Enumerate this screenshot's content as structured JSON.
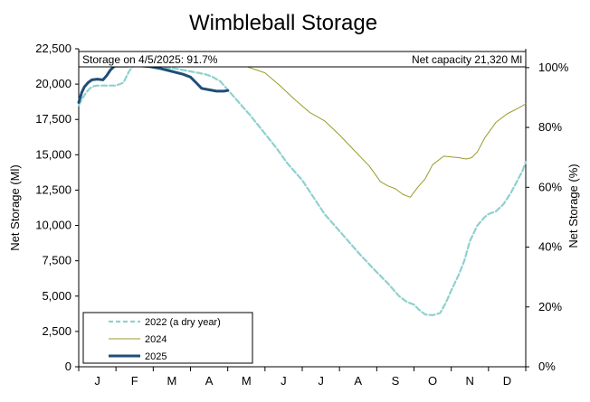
{
  "chart_data": {
    "type": "line",
    "title": "Wimbleball Storage",
    "ylabel": "Net Storage (Ml)",
    "y2label": "Net Storage (%)",
    "ylim": [
      0,
      22500
    ],
    "yticks": [
      "0",
      "2,500",
      "5,000",
      "7,500",
      "10,000",
      "12,500",
      "15,000",
      "17,500",
      "20,000",
      "22,500"
    ],
    "y2lim": [
      0,
      106.3
    ],
    "y2ticks": [
      "0%",
      "20%",
      "40%",
      "60%",
      "80%",
      "100%"
    ],
    "months": [
      "J",
      "F",
      "M",
      "A",
      "M",
      "J",
      "J",
      "A",
      "S",
      "O",
      "N",
      "D"
    ],
    "xlim": [
      0,
      12
    ],
    "capacity": 21320,
    "capacity_color": "#b5b23a",
    "annotation_left": "Storage on 4/5/2025: 91.7%",
    "annotation_right": "Net capacity 21,320 Ml",
    "series": [
      {
        "name": "2022 (a dry year)",
        "color": "#8fd1ce",
        "style": "dashed",
        "x": [
          0,
          0.1,
          0.2,
          0.3,
          0.4,
          0.5,
          0.7,
          1.0,
          1.2,
          1.35,
          1.45,
          1.6,
          1.8,
          2.0,
          2.3,
          2.6,
          2.8,
          3.0,
          3.2,
          3.4,
          3.6,
          3.8,
          4.0,
          4.3,
          4.6,
          5.0,
          5.3,
          5.6,
          6.0,
          6.3,
          6.6,
          7.0,
          7.3,
          7.6,
          8.0,
          8.3,
          8.6,
          8.8,
          9.0,
          9.15,
          9.3,
          9.5,
          9.7,
          9.85,
          10.0,
          10.2,
          10.35,
          10.5,
          10.7,
          10.9,
          11.0,
          11.2,
          11.4,
          11.6,
          11.8,
          11.92,
          12.0
        ],
        "y": [
          18500,
          19000,
          19400,
          19700,
          19850,
          19900,
          19900,
          19900,
          20100,
          20900,
          21250,
          21280,
          21250,
          21200,
          21150,
          21100,
          21000,
          20900,
          20800,
          20700,
          20500,
          20200,
          19600,
          18700,
          17800,
          16500,
          15500,
          14400,
          13200,
          12000,
          10800,
          9600,
          8700,
          7800,
          6700,
          5900,
          5000,
          4600,
          4400,
          4000,
          3700,
          3650,
          3800,
          4500,
          5400,
          6500,
          7500,
          8900,
          10000,
          10600,
          10800,
          11000,
          11500,
          12300,
          13300,
          13900,
          14500
        ]
      },
      {
        "name": "2024",
        "color": "#9a9a2e",
        "style": "solid",
        "x": [
          4.0,
          4.5,
          5.0,
          5.4,
          5.8,
          6.2,
          6.6,
          7.0,
          7.4,
          7.8,
          8.1,
          8.3,
          8.5,
          8.7,
          8.9,
          9.1,
          9.3,
          9.5,
          9.8,
          10.0,
          10.2,
          10.4,
          10.55,
          10.7,
          10.9,
          11.2,
          11.5,
          11.8,
          12.0
        ],
        "y": [
          21280,
          21250,
          20800,
          19900,
          18900,
          18000,
          17400,
          16400,
          15300,
          14200,
          13100,
          12800,
          12600,
          12200,
          12000,
          12700,
          13300,
          14300,
          14900,
          14850,
          14800,
          14700,
          14800,
          15200,
          16200,
          17300,
          17900,
          18300,
          18600
        ]
      },
      {
        "name": "2025",
        "color": "#1f4e79",
        "style": "solid",
        "x": [
          0,
          0.08,
          0.15,
          0.25,
          0.35,
          0.5,
          0.65,
          0.75,
          0.85,
          0.95,
          1.0,
          1.3,
          1.6,
          1.9,
          2.2,
          2.5,
          2.8,
          3.0,
          3.15,
          3.3,
          3.5,
          3.7,
          3.9,
          4.0
        ],
        "y": [
          18700,
          19400,
          19800,
          20100,
          20300,
          20350,
          20300,
          20600,
          21000,
          21250,
          21280,
          21280,
          21300,
          21250,
          21100,
          20900,
          20700,
          20500,
          20100,
          19700,
          19600,
          19500,
          19500,
          19550
        ]
      }
    ],
    "legend_position": "bottom-left",
    "grid": false
  }
}
